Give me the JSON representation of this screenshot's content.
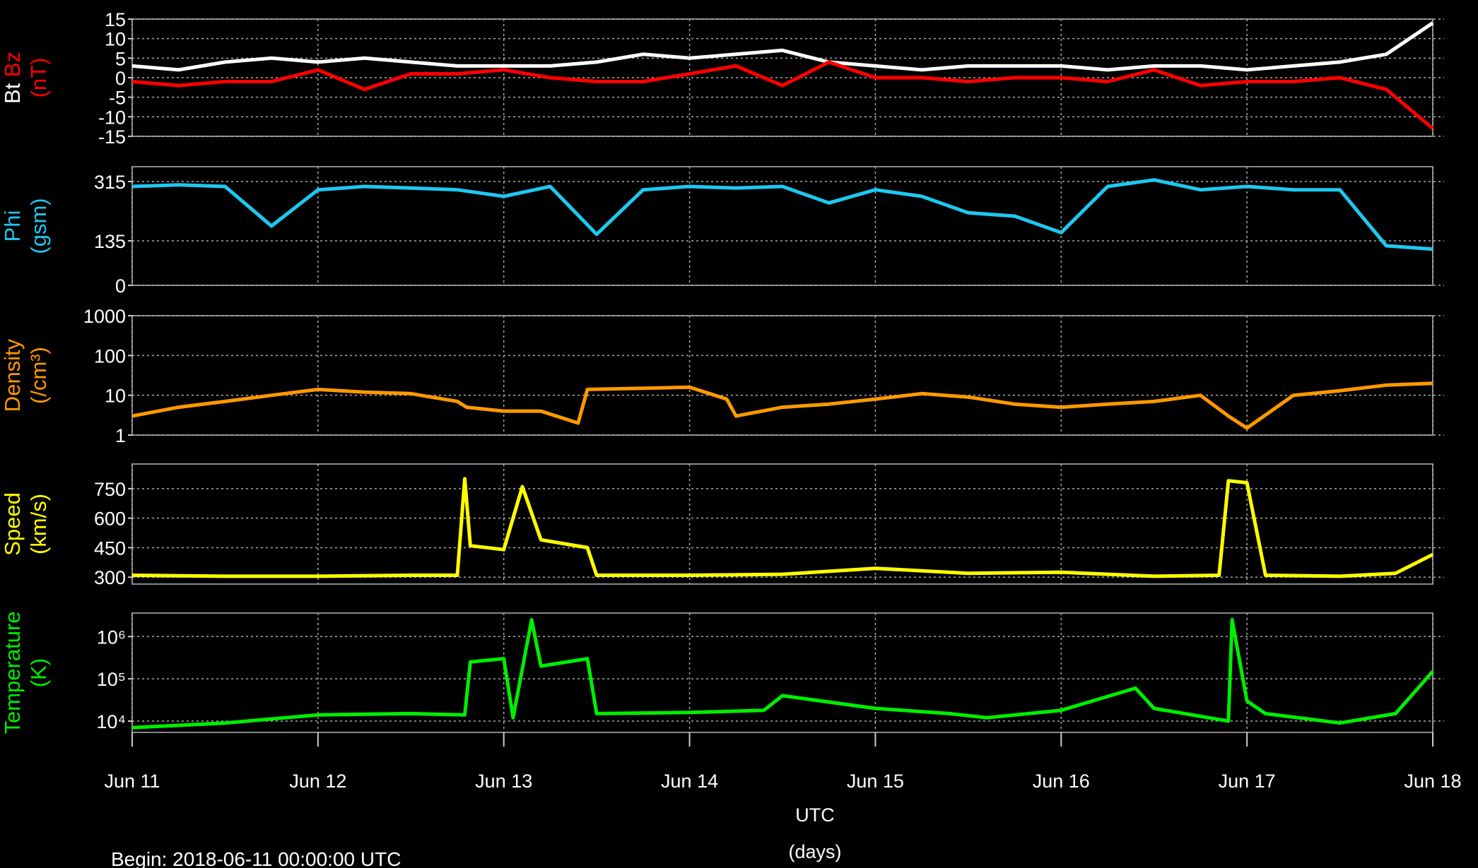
{
  "chart_data": [
    {
      "type": "line",
      "ylabel": [
        [
          {
            "text": "Bt",
            "color": "#ffffff"
          },
          {
            "text": "Bz",
            "color": "#ff0000"
          }
        ],
        [
          {
            "text": "(nT)",
            "color": "#ff0000"
          }
        ]
      ],
      "xlim": [
        0,
        7
      ],
      "ylim": [
        -15,
        15
      ],
      "yticks": [
        15,
        10,
        5,
        0,
        -5,
        -10,
        -15
      ],
      "grid": true,
      "x": [
        0,
        0.25,
        0.5,
        0.75,
        1,
        1.25,
        1.5,
        1.75,
        2,
        2.25,
        2.5,
        2.75,
        3,
        3.25,
        3.5,
        3.75,
        4,
        4.25,
        4.5,
        4.75,
        5,
        5.25,
        5.5,
        5.75,
        6,
        6.25,
        6.5,
        6.75,
        7
      ],
      "series": [
        {
          "name": "Bt",
          "color": "#ffffff",
          "values": [
            3,
            2,
            4,
            5,
            4,
            5,
            4,
            3,
            3,
            3,
            4,
            6,
            5,
            6,
            7,
            4,
            3,
            2,
            3,
            3,
            3,
            2,
            3,
            3,
            2,
            3,
            4,
            6,
            14
          ]
        },
        {
          "name": "Bz",
          "color": "#ff0000",
          "values": [
            -1,
            -2,
            -1,
            -1,
            2,
            -3,
            1,
            1,
            2,
            0,
            -1,
            -1,
            1,
            3,
            -2,
            4,
            0,
            0,
            -1,
            0,
            0,
            -1,
            2,
            -2,
            -1,
            -1,
            0,
            -3,
            -13
          ]
        }
      ]
    },
    {
      "type": "line",
      "ylabel": [
        [
          {
            "text": "Phi",
            "color": "#1ec8f0"
          }
        ],
        [
          {
            "text": "(gsm)",
            "color": "#1ec8f0"
          }
        ]
      ],
      "xlim": [
        0,
        7
      ],
      "ylim": [
        0,
        360
      ],
      "yticks": [
        315,
        135,
        0
      ],
      "grid": true,
      "x": [
        0,
        0.25,
        0.5,
        0.75,
        1,
        1.25,
        1.5,
        1.75,
        2,
        2.25,
        2.5,
        2.75,
        3,
        3.25,
        3.5,
        3.75,
        4,
        4.25,
        4.5,
        4.75,
        5,
        5.25,
        5.5,
        5.75,
        6,
        6.25,
        6.5,
        6.75,
        7
      ],
      "series": [
        {
          "name": "Phi",
          "color": "#1ec8f0",
          "values": [
            300,
            305,
            300,
            180,
            290,
            300,
            295,
            290,
            270,
            300,
            155,
            290,
            300,
            295,
            300,
            250,
            290,
            270,
            220,
            210,
            160,
            300,
            320,
            290,
            300,
            290,
            290,
            120,
            110
          ]
        }
      ]
    },
    {
      "type": "line",
      "ylabel": [
        [
          {
            "text": "Density",
            "color": "#ff9900"
          }
        ],
        [
          {
            "text": "(/cm³)",
            "color": "#ff9900"
          }
        ]
      ],
      "xlim": [
        0,
        7
      ],
      "ylim": [
        1,
        1000
      ],
      "log": true,
      "yticks": [
        1000,
        100,
        10,
        1
      ],
      "grid": true,
      "x": [
        0,
        0.25,
        0.5,
        0.75,
        1,
        1.25,
        1.5,
        1.75,
        1.8,
        2,
        2.2,
        2.4,
        2.45,
        2.75,
        3,
        3.2,
        3.25,
        3.5,
        3.75,
        4,
        4.25,
        4.5,
        4.75,
        5,
        5.25,
        5.5,
        5.75,
        5.9,
        6,
        6.25,
        6.5,
        6.75,
        7
      ],
      "series": [
        {
          "name": "Density",
          "color": "#ff9900",
          "values": [
            3,
            5,
            7,
            10,
            14,
            12,
            11,
            7,
            5,
            4,
            4,
            2,
            14,
            15,
            16,
            8,
            3,
            5,
            6,
            8,
            11,
            9,
            6,
            5,
            6,
            7,
            10,
            3,
            1.5,
            10,
            13,
            18,
            20
          ]
        }
      ]
    },
    {
      "type": "line",
      "ylabel": [
        [
          {
            "text": "Speed",
            "color": "#ffff00"
          }
        ],
        [
          {
            "text": "(km/s)",
            "color": "#ffff00"
          }
        ]
      ],
      "xlim": [
        0,
        7
      ],
      "ylim": [
        265,
        875
      ],
      "yticks": [
        750,
        600,
        450,
        300
      ],
      "grid": true,
      "x": [
        0,
        0.5,
        1,
        1.5,
        1.75,
        1.79,
        1.82,
        2,
        2.1,
        2.2,
        2.45,
        2.5,
        3,
        3.5,
        4,
        4.5,
        5,
        5.5,
        5.85,
        5.9,
        6,
        6.1,
        6.5,
        6.8,
        7
      ],
      "series": [
        {
          "name": "Speed",
          "color": "#ffff00",
          "values": [
            310,
            305,
            305,
            310,
            310,
            800,
            460,
            440,
            760,
            490,
            450,
            310,
            310,
            315,
            345,
            320,
            325,
            305,
            310,
            790,
            780,
            310,
            305,
            320,
            415
          ]
        }
      ]
    },
    {
      "type": "line",
      "ylabel": [
        [
          {
            "text": "Temperature",
            "color": "#00ee00"
          }
        ],
        [
          {
            "text": "(K)",
            "color": "#00ee00"
          }
        ]
      ],
      "xlim": [
        0,
        7
      ],
      "ylim": [
        5400,
        3600000
      ],
      "log": true,
      "yticks": [
        {
          "value": 1000000,
          "label": "10⁶"
        },
        {
          "value": 100000,
          "label": "10⁵"
        },
        {
          "value": 10000,
          "label": "10⁴"
        }
      ],
      "grid": true,
      "xticks": [
        {
          "value": 0,
          "label": "Jun 11"
        },
        {
          "value": 1,
          "label": "Jun 12"
        },
        {
          "value": 2,
          "label": "Jun 13"
        },
        {
          "value": 3,
          "label": "Jun 14"
        },
        {
          "value": 4,
          "label": "Jun 15"
        },
        {
          "value": 5,
          "label": "Jun 16"
        },
        {
          "value": 6,
          "label": "Jun 17"
        },
        {
          "value": 7,
          "label": "Jun 18"
        }
      ],
      "xlabel": [
        "UTC",
        "(days)"
      ],
      "x": [
        0,
        0.5,
        1,
        1.5,
        1.79,
        1.82,
        2,
        2.05,
        2.15,
        2.2,
        2.45,
        2.5,
        3,
        3.4,
        3.5,
        4,
        4.4,
        4.6,
        5,
        5.4,
        5.5,
        5.9,
        5.92,
        6,
        6.1,
        6.5,
        6.8,
        7
      ],
      "series": [
        {
          "name": "Temperature",
          "color": "#00ee00",
          "values": [
            7000,
            9000,
            14000,
            15000,
            14000,
            250000,
            300000,
            12000,
            2500000,
            200000,
            300000,
            15000,
            16000,
            18000,
            40000,
            20000,
            15000,
            12000,
            18000,
            60000,
            20000,
            10000,
            2500000,
            30000,
            15000,
            9000,
            15000,
            150000
          ]
        }
      ]
    }
  ],
  "footer": "Begin: 2018-06-11 00:00:00 UTC"
}
